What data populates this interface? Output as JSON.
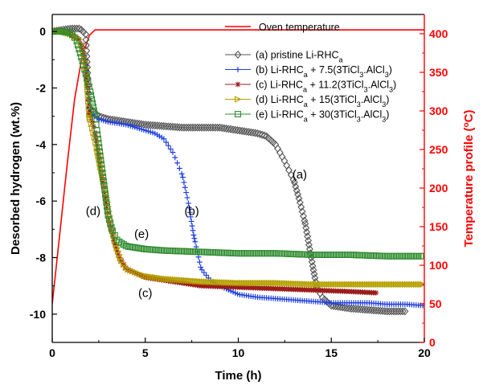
{
  "chart_data": {
    "type": "line",
    "xlabel": "Time (h)",
    "ylabel_left": "Desorbed hydrogen (wt.%)",
    "ylabel_right": "Temperature profile (°C)",
    "xlim": [
      0,
      20
    ],
    "ylim_left": [
      -11,
      0.6
    ],
    "ylim_right": [
      0,
      425
    ],
    "x_ticks": [
      "0",
      "5",
      "10",
      "15",
      "20"
    ],
    "y_left_ticks": [
      "0",
      "-2",
      "-4",
      "-6",
      "-8",
      "-10"
    ],
    "y_right_ticks": [
      "0",
      "50",
      "100",
      "150",
      "200",
      "250",
      "300",
      "350",
      "400"
    ],
    "grid": false,
    "legend_position": "top-right",
    "oven": {
      "name": "Oven temperature",
      "color": "#ff0000",
      "axis": "right",
      "points": [
        [
          0,
          50
        ],
        [
          0.4,
          140
        ],
        [
          0.8,
          230
        ],
        [
          1.2,
          315
        ],
        [
          1.6,
          370
        ],
        [
          2.0,
          398
        ],
        [
          2.3,
          405
        ],
        [
          20,
          405
        ]
      ]
    },
    "series": [
      {
        "name": "(a) pristine Li-RHCa",
        "color": "#555555",
        "marker": "diamond",
        "points": [
          [
            0,
            0
          ],
          [
            0.5,
            0.05
          ],
          [
            1.0,
            0.1
          ],
          [
            1.5,
            0.1
          ],
          [
            1.8,
            -0.1
          ],
          [
            2.0,
            -2.7
          ],
          [
            2.5,
            -3.0
          ],
          [
            3,
            -3.1
          ],
          [
            4,
            -3.2
          ],
          [
            5,
            -3.3
          ],
          [
            7,
            -3.4
          ],
          [
            9,
            -3.4
          ],
          [
            10,
            -3.5
          ],
          [
            11,
            -3.6
          ],
          [
            11.5,
            -3.7
          ],
          [
            12,
            -4.0
          ],
          [
            12.5,
            -4.6
          ],
          [
            13,
            -5.3
          ],
          [
            13.3,
            -6.0
          ],
          [
            13.6,
            -6.8
          ],
          [
            14,
            -8.3
          ],
          [
            14.2,
            -9.0
          ],
          [
            14.5,
            -9.4
          ],
          [
            15,
            -9.7
          ],
          [
            16,
            -9.8
          ],
          [
            17,
            -9.85
          ],
          [
            18,
            -9.9
          ],
          [
            19,
            -9.9
          ]
        ]
      },
      {
        "name": "(b) Li-RHCa + 7.5(3TiCl3.AlCl3)",
        "color": "#1f3fe0",
        "marker": "plus",
        "points": [
          [
            0,
            0
          ],
          [
            0.5,
            0
          ],
          [
            1.0,
            -0.1
          ],
          [
            1.5,
            -0.3
          ],
          [
            1.8,
            -1.0
          ],
          [
            2.0,
            -2.9
          ],
          [
            2.5,
            -3.1
          ],
          [
            3,
            -3.2
          ],
          [
            4,
            -3.3
          ],
          [
            5,
            -3.5
          ],
          [
            5.5,
            -3.6
          ],
          [
            6,
            -3.8
          ],
          [
            6.5,
            -4.3
          ],
          [
            7,
            -5.1
          ],
          [
            7.3,
            -6.0
          ],
          [
            7.6,
            -7.2
          ],
          [
            8,
            -8.4
          ],
          [
            8.5,
            -8.8
          ],
          [
            9,
            -9.0
          ],
          [
            10,
            -9.3
          ],
          [
            11,
            -9.4
          ],
          [
            12,
            -9.45
          ],
          [
            13,
            -9.5
          ],
          [
            14,
            -9.55
          ],
          [
            15,
            -9.6
          ],
          [
            16,
            -9.6
          ],
          [
            17,
            -9.6
          ],
          [
            18,
            -9.65
          ],
          [
            19,
            -9.65
          ],
          [
            20,
            -9.7
          ]
        ]
      },
      {
        "name": "(c) Li-RHCa + 11.2(3TiCl3.AlCl3)",
        "color": "#9b1b1b",
        "marker": "star",
        "points": [
          [
            0,
            0
          ],
          [
            0.5,
            0
          ],
          [
            1.0,
            -0.1
          ],
          [
            1.5,
            -0.3
          ],
          [
            1.8,
            -1.1
          ],
          [
            2.0,
            -2.9
          ],
          [
            2.2,
            -3.3
          ],
          [
            2.4,
            -4.0
          ],
          [
            2.6,
            -4.8
          ],
          [
            2.8,
            -5.7
          ],
          [
            3.0,
            -6.6
          ],
          [
            3.3,
            -7.4
          ],
          [
            3.6,
            -8.0
          ],
          [
            4,
            -8.4
          ],
          [
            5,
            -8.7
          ],
          [
            6,
            -8.8
          ],
          [
            7,
            -8.9
          ],
          [
            8,
            -9.0
          ],
          [
            10,
            -9.05
          ],
          [
            12,
            -9.1
          ],
          [
            14,
            -9.15
          ],
          [
            16,
            -9.2
          ],
          [
            17.5,
            -9.25
          ]
        ]
      },
      {
        "name": "(d) Li-RHCa + 15(3TiCl3.AlCl3)",
        "color": "#b5a000",
        "marker": "triangle-right",
        "points": [
          [
            0,
            0
          ],
          [
            0.5,
            0
          ],
          [
            1.0,
            -0.1
          ],
          [
            1.5,
            -0.3
          ],
          [
            1.8,
            -1.1
          ],
          [
            2.0,
            -3.0
          ],
          [
            2.3,
            -3.8
          ],
          [
            2.6,
            -4.8
          ],
          [
            2.9,
            -5.8
          ],
          [
            3.1,
            -6.6
          ],
          [
            3.4,
            -7.5
          ],
          [
            3.7,
            -8.1
          ],
          [
            4,
            -8.4
          ],
          [
            5,
            -8.65
          ],
          [
            6,
            -8.75
          ],
          [
            8,
            -8.85
          ],
          [
            10,
            -8.9
          ],
          [
            12,
            -8.9
          ],
          [
            14,
            -8.95
          ],
          [
            16,
            -8.95
          ],
          [
            18,
            -8.95
          ],
          [
            20,
            -8.95
          ]
        ]
      },
      {
        "name": "(e) Li-RHCa + 30(3TiCl3.AlCl3)",
        "color": "#2e8b2e",
        "marker": "square",
        "points": [
          [
            0,
            0
          ],
          [
            0.5,
            0
          ],
          [
            1.0,
            -0.05
          ],
          [
            1.3,
            -0.3
          ],
          [
            1.6,
            -1.0
          ],
          [
            2.0,
            -2.0
          ],
          [
            2.3,
            -3.0
          ],
          [
            2.6,
            -4.5
          ],
          [
            2.8,
            -5.5
          ],
          [
            3.0,
            -6.5
          ],
          [
            3.2,
            -7.0
          ],
          [
            3.5,
            -7.4
          ],
          [
            4,
            -7.6
          ],
          [
            5,
            -7.7
          ],
          [
            6,
            -7.75
          ],
          [
            8,
            -7.8
          ],
          [
            10,
            -7.85
          ],
          [
            12,
            -7.85
          ],
          [
            14,
            -7.9
          ],
          [
            16,
            -7.9
          ],
          [
            18,
            -7.95
          ],
          [
            20,
            -7.95
          ]
        ]
      }
    ],
    "annotations": [
      {
        "text": "(a)",
        "x": 13.3,
        "y": -5.2
      },
      {
        "text": "(b)",
        "x": 7.5,
        "y": -6.5
      },
      {
        "text": "(c)",
        "x": 5.0,
        "y": -9.4
      },
      {
        "text": "(d)",
        "x": 2.2,
        "y": -6.5
      },
      {
        "text": "(e)",
        "x": 4.8,
        "y": -7.3
      }
    ]
  }
}
